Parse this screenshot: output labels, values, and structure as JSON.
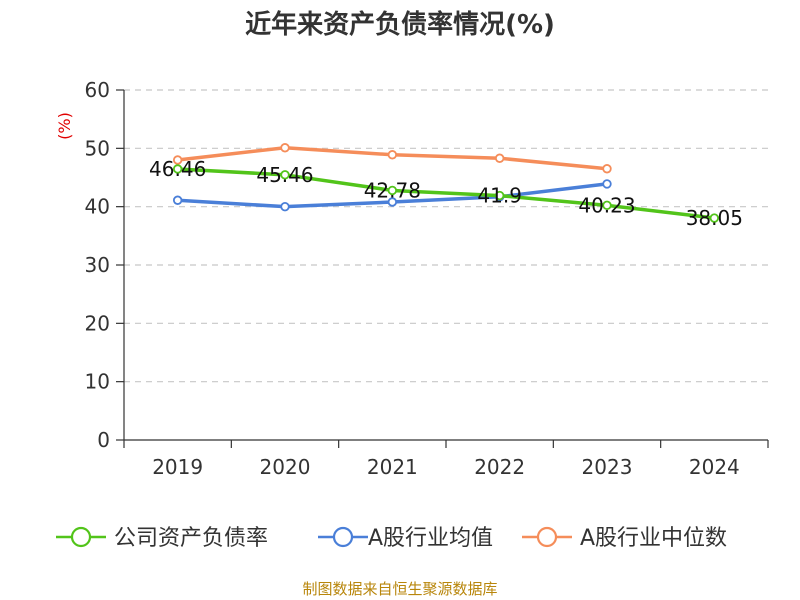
{
  "chart_data": {
    "type": "line",
    "title": "近年来资产负债率情况(%)",
    "ylabel": "(%)",
    "categories": [
      "2019",
      "2020",
      "2021",
      "2022",
      "2023",
      "2024"
    ],
    "ylim": [
      0,
      60
    ],
    "yticks": [
      0,
      10,
      20,
      30,
      40,
      50,
      60
    ],
    "grid": "horizontal dashed",
    "legend": "bottom",
    "series": [
      {
        "name": "公司资产负债率",
        "color": "#52c41a",
        "values": [
          46.46,
          45.46,
          42.78,
          41.9,
          40.23,
          38.05
        ],
        "labels": [
          "46.46",
          "45.46",
          "42.78",
          "41.9",
          "40.23",
          "38.05"
        ]
      },
      {
        "name": "A股行业均值",
        "color": "#4a7fd8",
        "values": [
          41.1,
          40.0,
          40.8,
          41.7,
          43.9,
          null
        ]
      },
      {
        "name": "A股行业中位数",
        "color": "#f58d5a",
        "values": [
          48.0,
          50.1,
          48.9,
          48.3,
          46.5,
          null
        ]
      }
    ]
  },
  "source": "制图数据来自恒生聚源数据库"
}
